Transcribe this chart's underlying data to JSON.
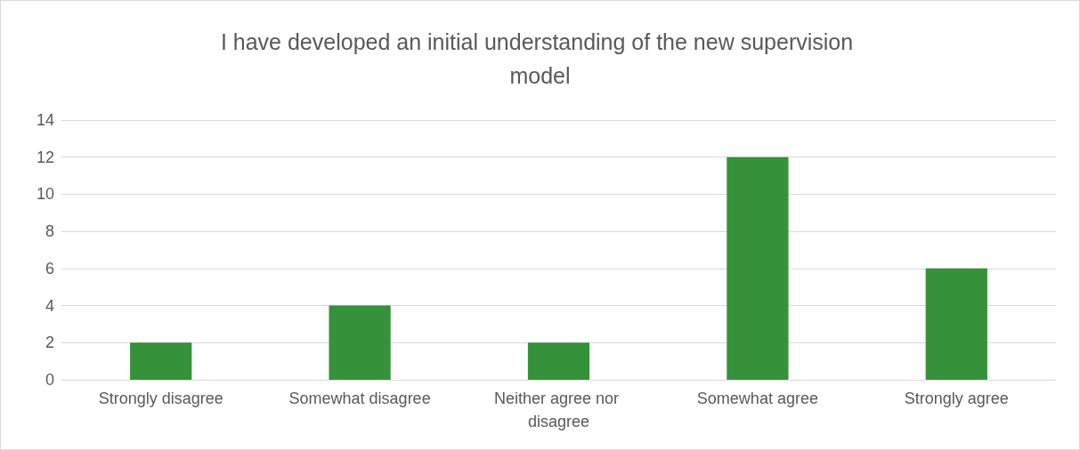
{
  "chart_data": {
    "type": "bar",
    "title": "I have developed an initial understanding of the new supervision model",
    "categories": [
      "Strongly disagree",
      "Somewhat disagree",
      "Neither agree nor disagree",
      "Somewhat agree",
      "Strongly agree"
    ],
    "values": [
      2,
      4,
      2,
      12,
      6
    ],
    "color": "#36923a",
    "ylim": [
      0,
      14
    ],
    "yticks": [
      0,
      2,
      4,
      6,
      8,
      10,
      12,
      14
    ],
    "grid": "y"
  }
}
